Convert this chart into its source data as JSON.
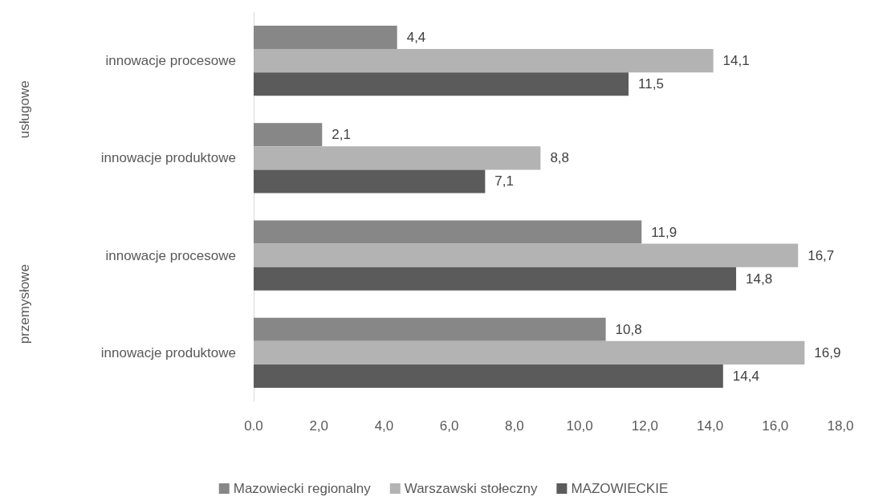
{
  "chart_data": {
    "type": "bar",
    "orientation": "horizontal",
    "categories": [
      "innowacje procesowe",
      "innowacje produktowe",
      "innowacje procesowe",
      "innowacje produktowe"
    ],
    "series": [
      {
        "name": "Mazowiecki regionalny",
        "color": "#878787",
        "values": [
          4.4,
          2.1,
          11.9,
          10.8
        ],
        "value_labels": [
          "4,4",
          "2,1",
          "11,9",
          "10,8"
        ]
      },
      {
        "name": "Warszawski stołeczny",
        "color": "#b3b3b3",
        "values": [
          14.1,
          8.8,
          16.7,
          16.9
        ],
        "value_labels": [
          "14,1",
          "8,8",
          "16,7",
          "16,9"
        ]
      },
      {
        "name": "MAZOWIECKIE",
        "color": "#5b5b5b",
        "values": [
          11.5,
          7.1,
          14.8,
          14.4
        ],
        "value_labels": [
          "11,5",
          "7,1",
          "14,8",
          "14,4"
        ]
      }
    ],
    "xlim": [
      0,
      18
    ],
    "xticks": [
      {
        "value": 0,
        "label": "0.0"
      },
      {
        "value": 2,
        "label": "2,0"
      },
      {
        "value": 4,
        "label": "4,0"
      },
      {
        "value": 6,
        "label": "6,0"
      },
      {
        "value": 8,
        "label": "8,0"
      },
      {
        "value": 10,
        "label": "10,0"
      },
      {
        "value": 12,
        "label": "12,0"
      },
      {
        "value": 14,
        "label": "14,0"
      },
      {
        "value": 16,
        "label": "16,0"
      },
      {
        "value": 18,
        "label": "18,0"
      }
    ],
    "annotations": [
      "usługowe",
      "przemysłowe"
    ],
    "grid": false,
    "legend": "bottom"
  }
}
